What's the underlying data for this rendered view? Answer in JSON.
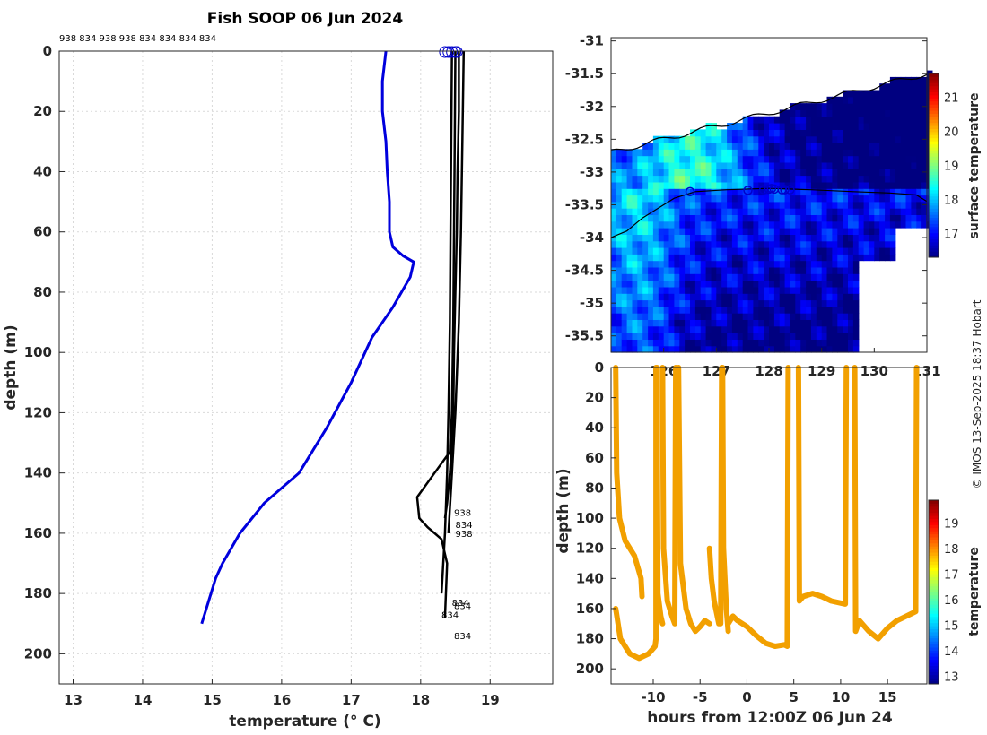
{
  "title": "Fish SOOP 06 Jun 2024",
  "credit": "© IMOS 13-Sep-2025 18:37 Hobart",
  "colors": {
    "profile": "#000000",
    "climatology": "#0000dd",
    "track": "#0000cc",
    "orange": "#f2a000"
  },
  "chart_data": [
    {
      "type": "line",
      "name": "temperature-profile",
      "xlabel": "temperature (° C)",
      "ylabel": "depth (m)",
      "xlim": [
        12.8,
        19.9
      ],
      "ylim": [
        0,
        210
      ],
      "xticks": [
        "13",
        "14",
        "15",
        "16",
        "17",
        "18",
        "19"
      ],
      "yticks": [
        "0",
        "20",
        "40",
        "60",
        "80",
        "100",
        "120",
        "140",
        "160",
        "180",
        "200"
      ],
      "grid": true,
      "top_ids": "938 834 938 938 834 834 834 834",
      "climatology": {
        "name": "climatology",
        "temperature": [
          17.5,
          17.45,
          17.45,
          17.5,
          17.52,
          17.55,
          17.55,
          17.55,
          17.6,
          17.75,
          17.9,
          17.85,
          17.6,
          17.3,
          17.0,
          16.65,
          16.25,
          15.75,
          15.4,
          15.15,
          15.05,
          14.85
        ],
        "depth": [
          0,
          10,
          20,
          30,
          40,
          50,
          55,
          60,
          65,
          68,
          70,
          75,
          85,
          95,
          110,
          125,
          140,
          150,
          160,
          170,
          175,
          190
        ]
      },
      "profiles": [
        {
          "id": "938",
          "temperature": [
            18.55,
            18.55,
            18.53,
            18.52,
            18.5,
            18.48,
            18.47,
            18.45,
            18.42,
            18.38,
            18.35
          ],
          "depth": [
            0,
            20,
            40,
            60,
            80,
            100,
            120,
            130,
            140,
            150,
            155
          ]
        },
        {
          "id": "834",
          "temperature": [
            18.5,
            18.49,
            18.48,
            18.47,
            18.45,
            18.42,
            18.2,
            17.95,
            17.98,
            18.1,
            18.3,
            18.38,
            18.35
          ],
          "depth": [
            0,
            30,
            60,
            90,
            120,
            133,
            140,
            148,
            155,
            158,
            162,
            170,
            188
          ]
        },
        {
          "id": "938",
          "temperature": [
            18.62,
            18.6,
            18.58,
            18.55,
            18.5,
            18.45,
            18.4
          ],
          "depth": [
            0,
            30,
            60,
            90,
            120,
            140,
            160
          ]
        },
        {
          "id": "834",
          "temperature": [
            18.45,
            18.44,
            18.43,
            18.42,
            18.4,
            18.38,
            18.35,
            18.3
          ],
          "depth": [
            0,
            30,
            60,
            90,
            120,
            140,
            160,
            180
          ]
        }
      ],
      "profile_labels": [
        {
          "text": "938",
          "temperature": 18.48,
          "depth": 153
        },
        {
          "text": "834",
          "temperature": 18.5,
          "depth": 157
        },
        {
          "text": "938",
          "temperature": 18.5,
          "depth": 160
        },
        {
          "text": "834",
          "temperature": 18.45,
          "depth": 183
        },
        {
          "text": "834",
          "temperature": 18.48,
          "depth": 184
        },
        {
          "text": "834",
          "temperature": 18.3,
          "depth": 187
        },
        {
          "text": "834",
          "temperature": 18.48,
          "depth": 194
        }
      ],
      "start_markers": [
        18.35,
        18.4,
        18.45,
        18.5,
        18.52
      ]
    },
    {
      "type": "heatmap",
      "name": "surface-temperature-map",
      "xlim": [
        125.0,
        131.0
      ],
      "ylim": [
        -35.75,
        -30.95
      ],
      "xticks": [
        "126",
        "127",
        "128",
        "129",
        "130",
        "131"
      ],
      "yticks": [
        "-31",
        "-31.5",
        "-32",
        "-32.5",
        "-33",
        "-33.5",
        "-34",
        "-34.5",
        "-35",
        "-35.5"
      ],
      "colorbar": {
        "label": "surface temperature",
        "range": [
          16.3,
          21.7
        ],
        "ticks": [
          "17",
          "18",
          "19",
          "20",
          "21"
        ]
      },
      "track_lon": [
        126.5,
        127.6,
        127.9,
        128.0,
        128.05,
        128.1,
        128.25,
        128.3,
        128.4
      ],
      "track_lat": [
        -33.3,
        -33.28,
        -33.27,
        -33.26,
        -33.25,
        -33.26,
        -33.27,
        -33.27,
        -33.27
      ]
    },
    {
      "type": "scatter",
      "name": "depth-time-section",
      "xlabel": "hours from 12:00Z 06 Jun 24",
      "ylabel": "depth (m)",
      "xlim": [
        -14.5,
        19.2
      ],
      "ylim": [
        0,
        210
      ],
      "xticks": [
        "-10",
        "-5",
        "0",
        "5",
        "10",
        "15"
      ],
      "yticks": [
        "0",
        "20",
        "40",
        "60",
        "80",
        "100",
        "120",
        "140",
        "160",
        "180",
        "200"
      ],
      "colorbar": {
        "label": "temperature",
        "range": [
          12.7,
          19.9
        ],
        "ticks": [
          "13",
          "14",
          "15",
          "16",
          "17",
          "18",
          "19"
        ]
      },
      "segments": [
        {
          "hours": [
            -14.0,
            -13.9,
            -13.6,
            -13.0,
            -12.0,
            -11.3,
            -11.2
          ],
          "depth": [
            0,
            70,
            100,
            115,
            125,
            140,
            152
          ]
        },
        {
          "hours": [
            -14.0,
            -13.5,
            -12.5,
            -11.5,
            -10.5,
            -9.8,
            -9.7,
            -9.7
          ],
          "depth": [
            160,
            180,
            190,
            193,
            190,
            185,
            180,
            0
          ]
        },
        {
          "hours": [
            -9.6,
            -9.5,
            -9.2,
            -9.0
          ],
          "depth": [
            0,
            150,
            165,
            170
          ]
        },
        {
          "hours": [
            -9.0,
            -8.9,
            -8.5,
            -8.0,
            -7.7,
            -7.6
          ],
          "depth": [
            0,
            120,
            155,
            165,
            170,
            0
          ]
        },
        {
          "hours": [
            -7.3,
            -7.1,
            -6.5,
            -6.0,
            -5.5,
            -5.0,
            -4.5,
            -4.0
          ],
          "depth": [
            0,
            130,
            160,
            170,
            175,
            172,
            168,
            170
          ]
        },
        {
          "hours": [
            -4.0,
            -3.8,
            -3.5,
            -3.0,
            -2.8,
            -2.7
          ],
          "depth": [
            120,
            140,
            155,
            170,
            170,
            0
          ]
        },
        {
          "hours": [
            -2.6,
            -2.5,
            -2.2,
            -2.0
          ],
          "depth": [
            0,
            120,
            160,
            175
          ]
        },
        {
          "hours": [
            -2.0,
            -1.5,
            -1.0,
            0.0,
            1.0,
            2.0,
            3.0,
            4.0,
            4.3,
            4.4
          ],
          "depth": [
            170,
            165,
            168,
            172,
            178,
            183,
            185,
            184,
            185,
            0
          ]
        },
        {
          "hours": [
            5.5,
            5.6,
            6.0,
            7.0,
            8.0,
            9.0,
            10.5,
            10.6
          ],
          "depth": [
            0,
            155,
            152,
            150,
            152,
            155,
            157,
            0
          ]
        },
        {
          "hours": [
            11.5,
            11.6,
            12.0,
            13.0,
            14.0,
            15.0,
            16.0,
            17.0,
            18.0,
            18.1
          ],
          "depth": [
            0,
            175,
            168,
            175,
            180,
            173,
            168,
            165,
            162,
            0
          ]
        }
      ]
    }
  ]
}
